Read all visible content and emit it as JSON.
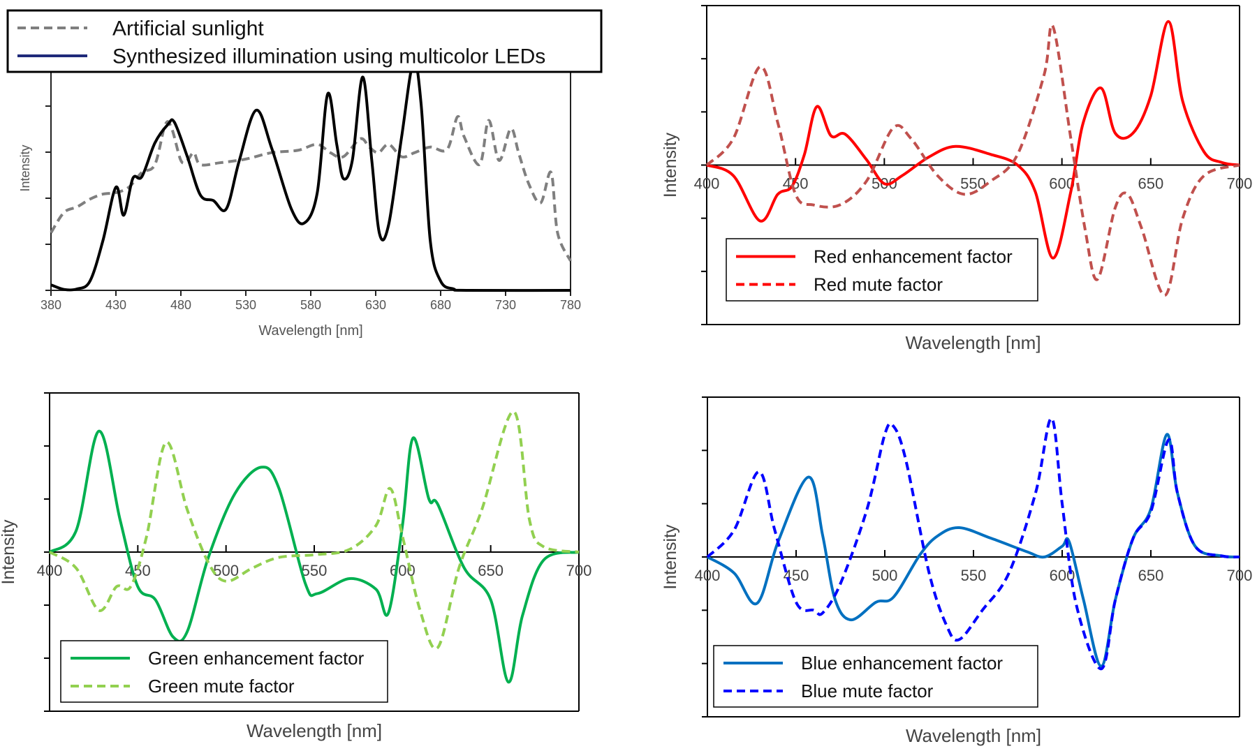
{
  "chart_data": [
    {
      "type": "line",
      "xlabel": "Wavelength [nm]",
      "ylabel": "Intensity",
      "xlim": [
        380,
        780
      ],
      "ylim": [
        0,
        5
      ],
      "xticks": [
        "380",
        "430",
        "480",
        "530",
        "580",
        "630",
        "680",
        "730",
        "780"
      ],
      "grid": false,
      "legend": "top",
      "series": [
        {
          "name": "Artificial sunlight",
          "color": "#7f7f7f",
          "dash": true,
          "points": [
            [
              380,
              1.25
            ],
            [
              390,
              1.69
            ],
            [
              400,
              1.81
            ],
            [
              410,
              1.98
            ],
            [
              420,
              2.09
            ],
            [
              430,
              2.12
            ],
            [
              440,
              2.24
            ],
            [
              450,
              2.56
            ],
            [
              460,
              2.73
            ],
            [
              468,
              3.6
            ],
            [
              473,
              3.51
            ],
            [
              480,
              2.82
            ],
            [
              485,
              2.82
            ],
            [
              490,
              2.99
            ],
            [
              495,
              2.73
            ],
            [
              510,
              2.77
            ],
            [
              530,
              2.85
            ],
            [
              550,
              2.99
            ],
            [
              570,
              3.04
            ],
            [
              585,
              3.17
            ],
            [
              595,
              2.99
            ],
            [
              605,
              2.9
            ],
            [
              618,
              3.29
            ],
            [
              625,
              3.11
            ],
            [
              632,
              2.99
            ],
            [
              640,
              3.17
            ],
            [
              650,
              2.9
            ],
            [
              660,
              2.99
            ],
            [
              672,
              3.11
            ],
            [
              685,
              3.06
            ],
            [
              693,
              3.77
            ],
            [
              698,
              3.34
            ],
            [
              710,
              2.73
            ],
            [
              717,
              3.69
            ],
            [
              725,
              2.82
            ],
            [
              734,
              3.51
            ],
            [
              740,
              2.99
            ],
            [
              748,
              2.3
            ],
            [
              757,
              1.9
            ],
            [
              765,
              2.56
            ],
            [
              770,
              1.25
            ],
            [
              780,
              0.64
            ]
          ]
        },
        {
          "name": "Synthesized illumination using multicolor LEDs",
          "color": "#000000",
          "legend_color": "#1f2a7a",
          "dash": false,
          "points": [
            [
              380,
              0.12
            ],
            [
              390,
              0.02
            ],
            [
              400,
              0.03
            ],
            [
              410,
              0.2
            ],
            [
              420,
              1.08
            ],
            [
              430,
              2.24
            ],
            [
              436,
              1.63
            ],
            [
              443,
              2.43
            ],
            [
              450,
              2.47
            ],
            [
              460,
              3.2
            ],
            [
              470,
              3.6
            ],
            [
              475,
              3.65
            ],
            [
              485,
              2.9
            ],
            [
              495,
              2.07
            ],
            [
              505,
              1.95
            ],
            [
              515,
              1.77
            ],
            [
              525,
              2.82
            ],
            [
              538,
              3.91
            ],
            [
              550,
              3.08
            ],
            [
              565,
              1.77
            ],
            [
              575,
              1.46
            ],
            [
              585,
              2.12
            ],
            [
              593,
              4.26
            ],
            [
              600,
              3.17
            ],
            [
              605,
              2.43
            ],
            [
              612,
              2.82
            ],
            [
              620,
              4.63
            ],
            [
              627,
              2.82
            ],
            [
              633,
              1.22
            ],
            [
              640,
              1.43
            ],
            [
              650,
              3.34
            ],
            [
              659,
              4.95
            ],
            [
              665,
              4.03
            ],
            [
              672,
              1.08
            ],
            [
              680,
              0.2
            ],
            [
              690,
              0.03
            ],
            [
              700,
              0
            ],
            [
              780,
              0
            ]
          ]
        }
      ]
    },
    {
      "type": "line",
      "xlabel": "Wavelength [nm]",
      "ylabel": "Intensity",
      "xlim": [
        400,
        700
      ],
      "ylim": [
        -3,
        3
      ],
      "xticks": [
        "400",
        "450",
        "500",
        "550",
        "600",
        "650",
        "700"
      ],
      "grid": false,
      "legend": "bottom-left",
      "series": [
        {
          "name": "Red enhancement factor",
          "color": "#ff0000",
          "dash": false,
          "points": [
            [
              400,
              0
            ],
            [
              415,
              -0.2
            ],
            [
              430,
              -1.05
            ],
            [
              440,
              -0.55
            ],
            [
              448,
              -0.4
            ],
            [
              455,
              0.2
            ],
            [
              462,
              1.1
            ],
            [
              470,
              0.55
            ],
            [
              478,
              0.58
            ],
            [
              490,
              0.1
            ],
            [
              500,
              -0.35
            ],
            [
              510,
              -0.2
            ],
            [
              525,
              0.15
            ],
            [
              540,
              0.35
            ],
            [
              560,
              0.2
            ],
            [
              575,
              0
            ],
            [
              585,
              -0.5
            ],
            [
              595,
              -1.75
            ],
            [
              605,
              -0.5
            ],
            [
              612,
              0.8
            ],
            [
              622,
              1.45
            ],
            [
              630,
              0.6
            ],
            [
              640,
              0.6
            ],
            [
              650,
              1.3
            ],
            [
              660,
              2.7
            ],
            [
              668,
              1.2
            ],
            [
              680,
              0.25
            ],
            [
              690,
              0.05
            ],
            [
              700,
              0
            ]
          ]
        },
        {
          "name": "Red mute factor",
          "color": "#c0504d",
          "legend_color": "#ff0000",
          "dash": true,
          "points": [
            [
              400,
              0
            ],
            [
              415,
              0.5
            ],
            [
              430,
              1.85
            ],
            [
              440,
              0.8
            ],
            [
              450,
              -0.55
            ],
            [
              460,
              -0.75
            ],
            [
              475,
              -0.75
            ],
            [
              490,
              -0.3
            ],
            [
              505,
              0.7
            ],
            [
              515,
              0.5
            ],
            [
              530,
              -0.2
            ],
            [
              545,
              -0.55
            ],
            [
              560,
              -0.3
            ],
            [
              575,
              0.2
            ],
            [
              590,
              1.7
            ],
            [
              595,
              2.6
            ],
            [
              605,
              0.5
            ],
            [
              613,
              -1.2
            ],
            [
              620,
              -2.15
            ],
            [
              630,
              -0.8
            ],
            [
              637,
              -0.55
            ],
            [
              645,
              -1.2
            ],
            [
              658,
              -2.45
            ],
            [
              668,
              -1.0
            ],
            [
              680,
              -0.2
            ],
            [
              700,
              0
            ]
          ]
        }
      ]
    },
    {
      "type": "line",
      "xlabel": "Wavelength [nm]",
      "ylabel": "Intensity",
      "xlim": [
        400,
        700
      ],
      "ylim": [
        -3,
        3
      ],
      "xticks": [
        "400",
        "450",
        "500",
        "550",
        "600",
        "650",
        "700"
      ],
      "grid": false,
      "legend": "bottom-left",
      "series": [
        {
          "name": "Green enhancement factor",
          "color": "#00b050",
          "dash": false,
          "points": [
            [
              400,
              0
            ],
            [
              415,
              0.4
            ],
            [
              428,
              2.28
            ],
            [
              440,
              0.6
            ],
            [
              450,
              -0.65
            ],
            [
              460,
              -0.9
            ],
            [
              470,
              -1.6
            ],
            [
              478,
              -1.5
            ],
            [
              490,
              -0.1
            ],
            [
              505,
              1.1
            ],
            [
              520,
              1.6
            ],
            [
              530,
              1.2
            ],
            [
              545,
              -0.6
            ],
            [
              552,
              -0.78
            ],
            [
              570,
              -0.5
            ],
            [
              585,
              -0.7
            ],
            [
              592,
              -1.15
            ],
            [
              600,
              0.5
            ],
            [
              606,
              2.15
            ],
            [
              615,
              1.0
            ],
            [
              620,
              0.9
            ],
            [
              635,
              -0.3
            ],
            [
              650,
              -0.9
            ],
            [
              660,
              -2.45
            ],
            [
              668,
              -1.2
            ],
            [
              680,
              -0.15
            ],
            [
              700,
              0
            ]
          ]
        },
        {
          "name": "Green mute factor",
          "color": "#92d050",
          "dash": true,
          "points": [
            [
              400,
              0
            ],
            [
              415,
              -0.3
            ],
            [
              428,
              -1.1
            ],
            [
              438,
              -0.65
            ],
            [
              446,
              -0.65
            ],
            [
              455,
              0.3
            ],
            [
              466,
              2.07
            ],
            [
              478,
              0.8
            ],
            [
              490,
              -0.2
            ],
            [
              500,
              -0.55
            ],
            [
              515,
              -0.3
            ],
            [
              530,
              -0.1
            ],
            [
              550,
              -0.05
            ],
            [
              570,
              0.05
            ],
            [
              585,
              0.5
            ],
            [
              593,
              1.2
            ],
            [
              600,
              0.3
            ],
            [
              610,
              -1.1
            ],
            [
              620,
              -1.8
            ],
            [
              632,
              -0.3
            ],
            [
              645,
              0.8
            ],
            [
              663,
              2.65
            ],
            [
              672,
              0.6
            ],
            [
              680,
              0.1
            ],
            [
              700,
              0
            ]
          ]
        }
      ]
    },
    {
      "type": "line",
      "xlabel": "Wavelength [nm]",
      "ylabel": "Intensity",
      "xlim": [
        400,
        700
      ],
      "ylim": [
        -3,
        3
      ],
      "xticks": [
        "400",
        "450",
        "500",
        "550",
        "600",
        "650",
        "700"
      ],
      "grid": false,
      "legend": "bottom-left",
      "series": [
        {
          "name": "Blue enhancement factor",
          "color": "#0070c0",
          "dash": false,
          "points": [
            [
              400,
              0
            ],
            [
              415,
              -0.3
            ],
            [
              428,
              -0.87
            ],
            [
              440,
              0.3
            ],
            [
              457,
              1.5
            ],
            [
              465,
              0.4
            ],
            [
              472,
              -0.8
            ],
            [
              481,
              -1.18
            ],
            [
              495,
              -0.85
            ],
            [
              505,
              -0.75
            ],
            [
              520,
              0.05
            ],
            [
              530,
              0.4
            ],
            [
              542,
              0.55
            ],
            [
              560,
              0.35
            ],
            [
              580,
              0.1
            ],
            [
              590,
              0.0
            ],
            [
              600,
              0.2
            ],
            [
              604,
              0.28
            ],
            [
              612,
              -0.8
            ],
            [
              622,
              -2.05
            ],
            [
              630,
              -0.8
            ],
            [
              640,
              0.35
            ],
            [
              650,
              0.9
            ],
            [
              659,
              2.3
            ],
            [
              665,
              1.2
            ],
            [
              675,
              0.2
            ],
            [
              690,
              0.02
            ],
            [
              700,
              0
            ]
          ]
        },
        {
          "name": "Blue mute factor",
          "color": "#0000ff",
          "dash": true,
          "points": [
            [
              400,
              0
            ],
            [
              415,
              0.5
            ],
            [
              429,
              1.6
            ],
            [
              438,
              0.5
            ],
            [
              450,
              -0.85
            ],
            [
              460,
              -1.0
            ],
            [
              465,
              -1.05
            ],
            [
              475,
              -0.5
            ],
            [
              490,
              0.9
            ],
            [
              500,
              2.3
            ],
            [
              505,
              2.45
            ],
            [
              512,
              1.8
            ],
            [
              525,
              -0.3
            ],
            [
              535,
              -1.3
            ],
            [
              542,
              -1.55
            ],
            [
              555,
              -1.0
            ],
            [
              570,
              -0.3
            ],
            [
              585,
              1.2
            ],
            [
              594,
              2.6
            ],
            [
              600,
              1.0
            ],
            [
              608,
              -0.9
            ],
            [
              622,
              -2.1
            ],
            [
              630,
              -0.8
            ],
            [
              640,
              0.35
            ],
            [
              650,
              0.85
            ],
            [
              660,
              2.2
            ],
            [
              665,
              1.2
            ],
            [
              675,
              0.2
            ],
            [
              690,
              0.02
            ],
            [
              700,
              0
            ]
          ]
        }
      ]
    }
  ]
}
